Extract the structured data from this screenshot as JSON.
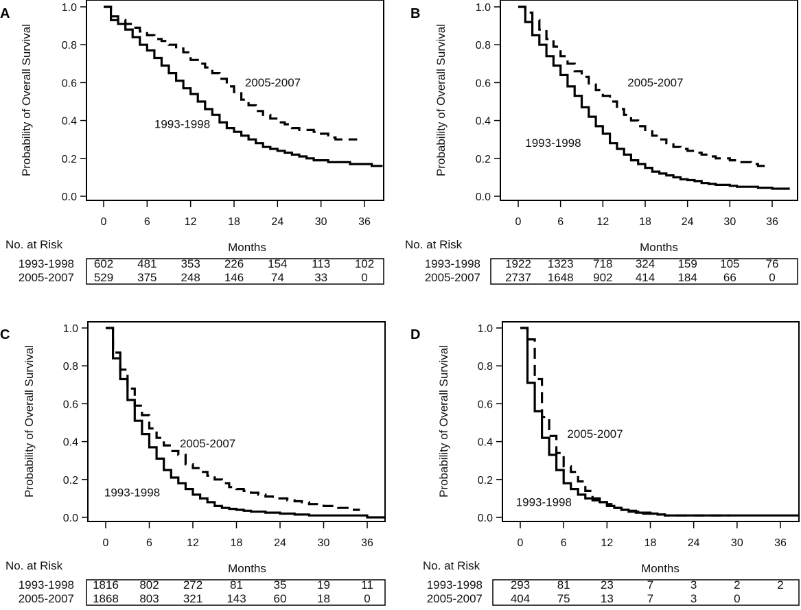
{
  "figure": {
    "y_axis_title": "Probability of Overall Survival",
    "x_axis_title": "Months",
    "risk_header": "No. at Risk",
    "line_color": "#000000",
    "background": "#ffffff"
  },
  "chart_data": [
    {
      "type": "line",
      "panel": "A",
      "title": "",
      "xlabel": "Months",
      "ylabel": "Probability of Overall Survival",
      "xlim": [
        -2,
        38.5
      ],
      "ylim": [
        0,
        1
      ],
      "xticks": [
        0,
        6,
        12,
        18,
        24,
        30,
        36
      ],
      "yticks": [
        "0.0",
        "0.2",
        "0.4",
        "0.6",
        "0.8",
        "1.0"
      ],
      "grid": false,
      "series": [
        {
          "name": "1993-1998",
          "style": "solid",
          "label_at": [
            7,
            0.36
          ],
          "x": [
            0,
            1,
            2,
            3,
            4,
            5,
            6,
            7,
            8,
            9,
            10,
            11,
            12,
            13,
            14,
            15,
            16,
            17,
            18,
            19,
            20,
            21,
            22,
            23,
            24,
            25,
            26,
            27,
            28,
            29,
            30,
            31,
            32,
            33,
            34,
            35,
            36,
            37,
            38.5
          ],
          "y": [
            1.0,
            0.93,
            0.91,
            0.88,
            0.84,
            0.8,
            0.77,
            0.73,
            0.69,
            0.65,
            0.61,
            0.57,
            0.54,
            0.5,
            0.46,
            0.43,
            0.39,
            0.36,
            0.34,
            0.32,
            0.3,
            0.28,
            0.26,
            0.25,
            0.24,
            0.23,
            0.22,
            0.21,
            0.2,
            0.19,
            0.19,
            0.18,
            0.18,
            0.18,
            0.17,
            0.17,
            0.17,
            0.16,
            0.16
          ]
        },
        {
          "name": "2005-2007",
          "style": "dashed",
          "label_at": [
            19.5,
            0.58
          ],
          "x": [
            0,
            1,
            2,
            3,
            4,
            5,
            6,
            7,
            8,
            9,
            10,
            11,
            12,
            13,
            14,
            15,
            16,
            17,
            18,
            19,
            20,
            21,
            22,
            23,
            24,
            25,
            26,
            27,
            28,
            29,
            30,
            31,
            32,
            33,
            34,
            35
          ],
          "y": [
            1.0,
            0.95,
            0.93,
            0.91,
            0.89,
            0.87,
            0.85,
            0.83,
            0.82,
            0.8,
            0.78,
            0.76,
            0.72,
            0.7,
            0.68,
            0.65,
            0.62,
            0.58,
            0.55,
            0.51,
            0.48,
            0.45,
            0.43,
            0.41,
            0.39,
            0.38,
            0.36,
            0.35,
            0.35,
            0.34,
            0.33,
            0.31,
            0.3,
            0.3,
            0.3,
            0.3
          ]
        }
      ],
      "risk_table": {
        "rows": [
          {
            "label": "1993-1998",
            "values": [
              "602",
              "481",
              "353",
              "226",
              "154",
              "113",
              "102"
            ]
          },
          {
            "label": "2005-2007",
            "values": [
              "529",
              "375",
              "248",
              "146",
              "74",
              "33",
              "0"
            ]
          }
        ]
      }
    },
    {
      "type": "line",
      "panel": "B",
      "title": "",
      "xlabel": "Months",
      "ylabel": "Probability of Overall Survival",
      "xlim": [
        -2,
        38.5
      ],
      "ylim": [
        0,
        1
      ],
      "xticks": [
        0,
        6,
        12,
        18,
        24,
        30,
        36
      ],
      "yticks": [
        "0.0",
        "0.2",
        "0.4",
        "0.6",
        "0.8",
        "1.0"
      ],
      "grid": false,
      "series": [
        {
          "name": "1993-1998",
          "style": "solid",
          "label_at": [
            1,
            0.26
          ],
          "x": [
            0,
            1,
            2,
            3,
            4,
            5,
            6,
            7,
            8,
            9,
            10,
            11,
            12,
            13,
            14,
            15,
            16,
            17,
            18,
            19,
            20,
            21,
            22,
            23,
            24,
            25,
            26,
            27,
            28,
            29,
            30,
            31,
            32,
            33,
            34,
            35,
            36,
            37,
            38.5
          ],
          "y": [
            1.0,
            0.92,
            0.85,
            0.8,
            0.74,
            0.69,
            0.64,
            0.58,
            0.53,
            0.47,
            0.42,
            0.37,
            0.33,
            0.28,
            0.25,
            0.22,
            0.19,
            0.17,
            0.15,
            0.13,
            0.12,
            0.11,
            0.1,
            0.09,
            0.085,
            0.08,
            0.07,
            0.065,
            0.06,
            0.06,
            0.055,
            0.05,
            0.05,
            0.05,
            0.045,
            0.045,
            0.04,
            0.04,
            0.04
          ]
        },
        {
          "name": "2005-2007",
          "style": "dashed",
          "label_at": [
            15.5,
            0.58
          ],
          "x": [
            0,
            1,
            2,
            3,
            4,
            5,
            6,
            7,
            8,
            9,
            10,
            11,
            12,
            13,
            14,
            15,
            16,
            17,
            18,
            19,
            20,
            21,
            22,
            23,
            24,
            25,
            26,
            27,
            28,
            29,
            30,
            31,
            32,
            33,
            34,
            35
          ],
          "y": [
            1.0,
            0.97,
            0.93,
            0.88,
            0.83,
            0.79,
            0.74,
            0.7,
            0.66,
            0.63,
            0.59,
            0.56,
            0.53,
            0.5,
            0.46,
            0.43,
            0.4,
            0.37,
            0.35,
            0.32,
            0.3,
            0.28,
            0.26,
            0.25,
            0.24,
            0.23,
            0.22,
            0.21,
            0.2,
            0.2,
            0.19,
            0.18,
            0.18,
            0.17,
            0.16,
            0.15
          ]
        }
      ],
      "risk_table": {
        "rows": [
          {
            "label": "1993-1998",
            "values": [
              "1922",
              "1323",
              "718",
              "324",
              "159",
              "105",
              "76"
            ]
          },
          {
            "label": "2005-2007",
            "values": [
              "2737",
              "1648",
              "902",
              "414",
              "184",
              "66",
              "0"
            ]
          }
        ]
      }
    },
    {
      "type": "line",
      "panel": "C",
      "title": "",
      "xlabel": "Months",
      "ylabel": "Probability of Overall Survival",
      "xlim": [
        -2,
        38.5
      ],
      "ylim": [
        0,
        1
      ],
      "xticks": [
        0,
        6,
        12,
        18,
        24,
        30,
        36
      ],
      "yticks": [
        "0.0",
        "0.2",
        "0.4",
        "0.6",
        "0.8",
        "1.0"
      ],
      "grid": false,
      "series": [
        {
          "name": "1993-1998",
          "style": "solid",
          "label_at": [
            -0.2,
            0.11
          ],
          "x": [
            0,
            1,
            2,
            3,
            4,
            5,
            6,
            7,
            8,
            9,
            10,
            11,
            12,
            13,
            14,
            15,
            16,
            17,
            18,
            19,
            20,
            22,
            24,
            26,
            28,
            30,
            32,
            34,
            36,
            38.5
          ],
          "y": [
            1.0,
            0.84,
            0.73,
            0.62,
            0.51,
            0.44,
            0.37,
            0.31,
            0.25,
            0.21,
            0.18,
            0.15,
            0.12,
            0.1,
            0.08,
            0.06,
            0.05,
            0.045,
            0.04,
            0.035,
            0.03,
            0.025,
            0.02,
            0.015,
            0.01,
            0.01,
            0.01,
            0.01,
            0.0,
            0.0
          ]
        },
        {
          "name": "2005-2007",
          "style": "dashed",
          "label_at": [
            10.2,
            0.37
          ],
          "x": [
            0,
            1,
            2,
            3,
            4,
            5,
            6,
            7,
            8,
            9,
            10,
            11,
            12,
            13,
            14,
            15,
            16,
            17,
            18,
            19,
            20,
            21,
            22,
            23,
            24,
            25,
            26,
            27,
            28,
            29,
            30,
            31,
            32,
            33,
            34,
            35
          ],
          "y": [
            1.0,
            0.87,
            0.78,
            0.68,
            0.59,
            0.54,
            0.47,
            0.42,
            0.38,
            0.35,
            0.33,
            0.28,
            0.26,
            0.24,
            0.22,
            0.2,
            0.18,
            0.16,
            0.15,
            0.14,
            0.13,
            0.12,
            0.11,
            0.1,
            0.1,
            0.09,
            0.085,
            0.08,
            0.07,
            0.07,
            0.06,
            0.06,
            0.05,
            0.05,
            0.04,
            0.04
          ]
        }
      ],
      "risk_table": {
        "rows": [
          {
            "label": "1993-1998",
            "values": [
              "1816",
              "802",
              "272",
              "81",
              "35",
              "19",
              "11"
            ]
          },
          {
            "label": "2005-2007",
            "values": [
              "1868",
              "803",
              "321",
              "143",
              "60",
              "18",
              "0"
            ]
          }
        ]
      }
    },
    {
      "type": "line",
      "panel": "D",
      "title": "",
      "xlabel": "Months",
      "ylabel": "Probability of Overall Survival",
      "xlim": [
        -2,
        38.5
      ],
      "ylim": [
        0,
        1
      ],
      "xticks": [
        0,
        6,
        12,
        18,
        24,
        30,
        36
      ],
      "yticks": [
        "0.0",
        "0.2",
        "0.4",
        "0.6",
        "0.8",
        "1.0"
      ],
      "grid": false,
      "series": [
        {
          "name": "1993-1998",
          "style": "solid",
          "label_at": [
            -0.6,
            0.06
          ],
          "x": [
            0,
            1,
            2,
            3,
            4,
            5,
            6,
            7,
            8,
            9,
            10,
            11,
            12,
            13,
            14,
            15,
            16,
            17,
            18,
            19,
            20,
            22,
            24,
            26,
            28,
            30,
            32,
            34,
            36,
            38.5
          ],
          "y": [
            1.0,
            0.71,
            0.56,
            0.42,
            0.33,
            0.25,
            0.18,
            0.15,
            0.12,
            0.1,
            0.09,
            0.08,
            0.06,
            0.05,
            0.04,
            0.03,
            0.025,
            0.02,
            0.02,
            0.015,
            0.01,
            0.01,
            0.01,
            0.01,
            0.01,
            0.01,
            0.01,
            0.01,
            0.01,
            0.01
          ]
        },
        {
          "name": "2005-2007",
          "style": "dashed",
          "label_at": [
            6.5,
            0.42
          ],
          "x": [
            0,
            1,
            2,
            3,
            4,
            5,
            6,
            7,
            8,
            9,
            10,
            11,
            12,
            13,
            14,
            15,
            16,
            17,
            18,
            19,
            20,
            22,
            24,
            26,
            28,
            29
          ],
          "y": [
            1.0,
            0.94,
            0.73,
            0.53,
            0.43,
            0.34,
            0.27,
            0.24,
            0.19,
            0.14,
            0.1,
            0.08,
            0.07,
            0.05,
            0.04,
            0.035,
            0.03,
            0.025,
            0.02,
            0.015,
            0.01,
            0.01,
            0.01,
            0.01,
            0.01,
            0.01
          ]
        }
      ],
      "risk_table": {
        "rows": [
          {
            "label": "1993-1998",
            "values": [
              "293",
              "81",
              "23",
              "7",
              "3",
              "2",
              "2"
            ]
          },
          {
            "label": "2005-2007",
            "values": [
              "404",
              "75",
              "13",
              "7",
              "3",
              "0",
              ""
            ]
          }
        ]
      }
    }
  ]
}
